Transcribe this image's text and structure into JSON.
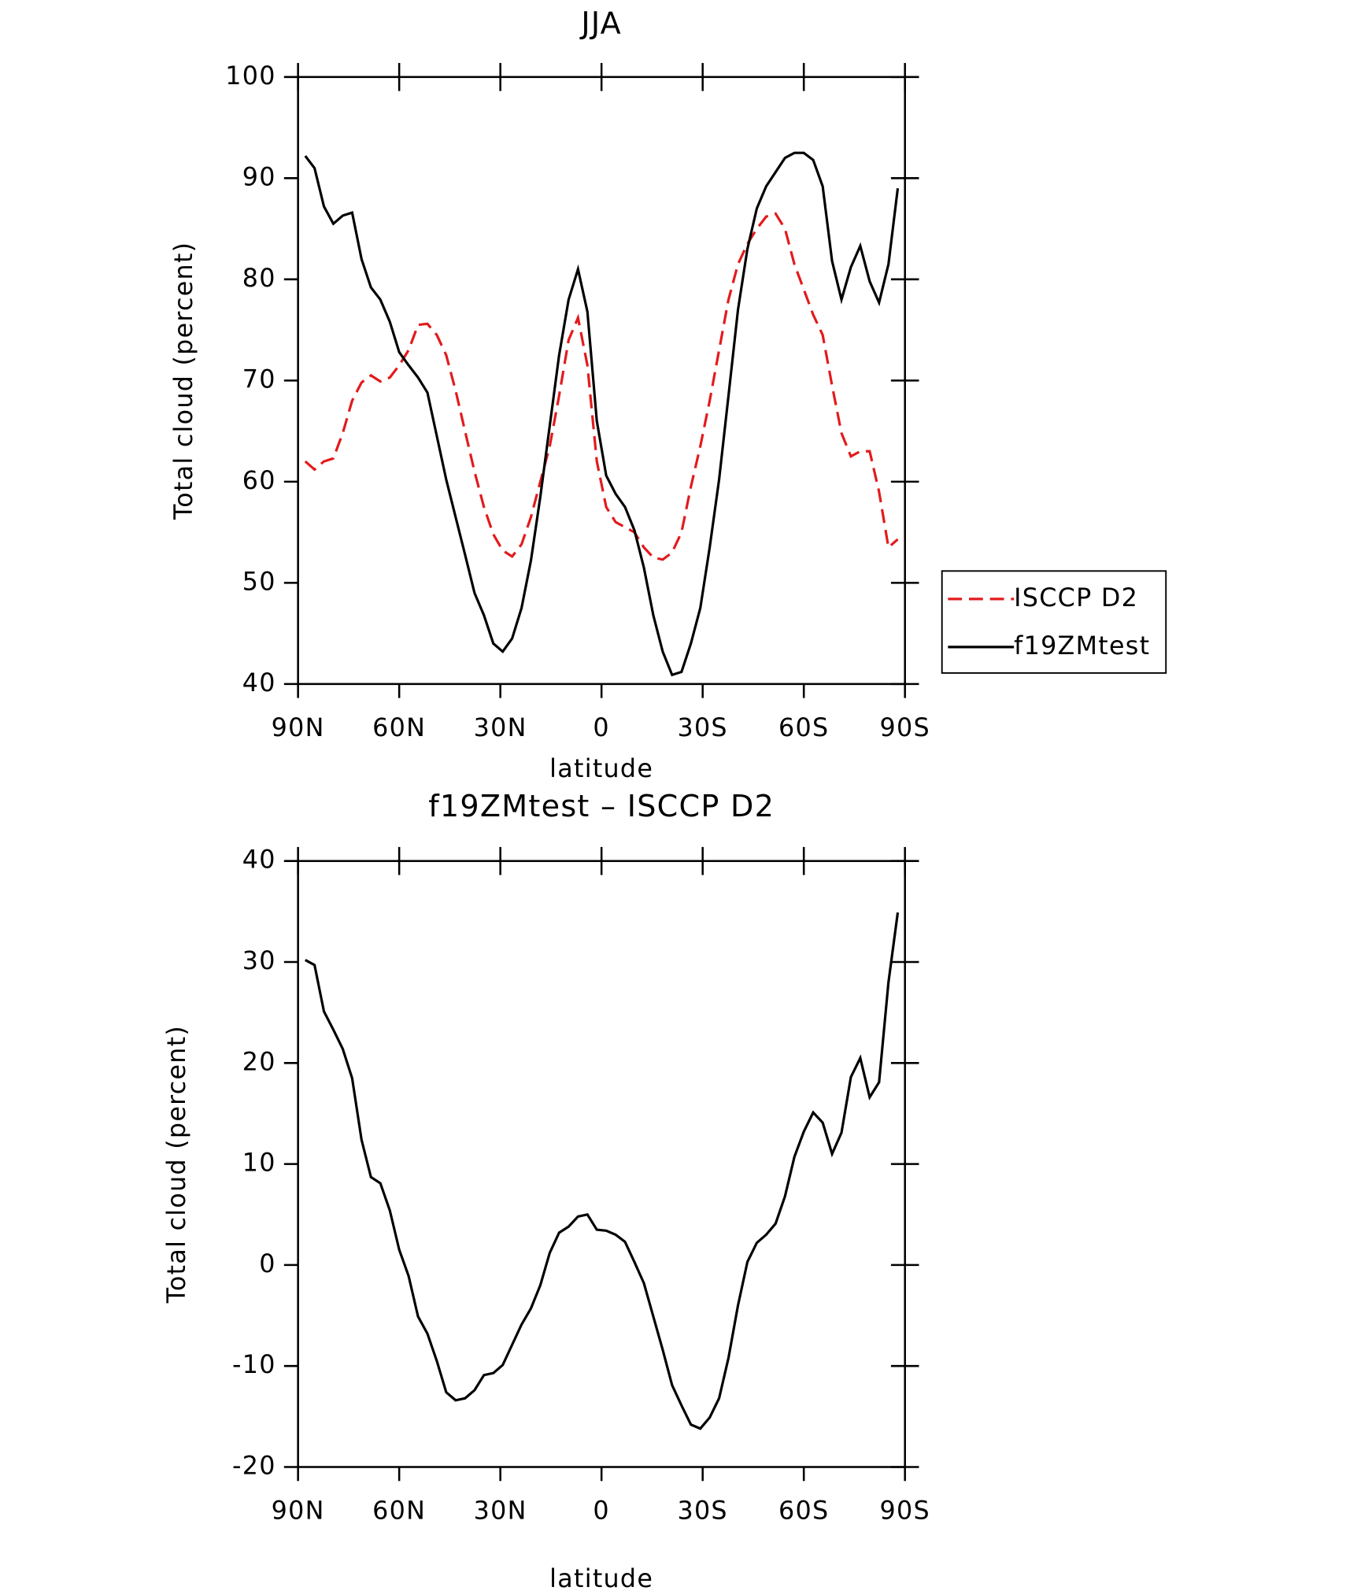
{
  "chart_data": [
    {
      "type": "line",
      "title": "JJA",
      "xlabel": "latitude",
      "ylabel": "Total cloud (percent)",
      "x": [
        87.86,
        85.1,
        82.31,
        79.53,
        76.74,
        73.95,
        71.16,
        68.37,
        65.58,
        62.79,
        60.0,
        57.21,
        54.42,
        51.63,
        48.84,
        46.05,
        43.26,
        40.47,
        37.67,
        34.88,
        32.09,
        29.3,
        26.51,
        23.72,
        20.93,
        18.14,
        15.35,
        12.56,
        9.77,
        6.98,
        4.19,
        1.4,
        -1.4,
        -4.19,
        -6.98,
        -9.77,
        -12.56,
        -15.35,
        -18.14,
        -20.93,
        -23.72,
        -26.51,
        -29.3,
        -32.09,
        -34.88,
        -37.67,
        -40.47,
        -43.26,
        -46.05,
        -48.84,
        -51.63,
        -54.42,
        -57.21,
        -60.0,
        -62.79,
        -65.58,
        -68.37,
        -71.16,
        -73.95,
        -76.74,
        -79.53,
        -82.31,
        -85.1,
        -87.86
      ],
      "series": [
        {
          "name": "ISCCP D2",
          "color": "#e31a1c",
          "dash": true,
          "values": [
            62,
            61.2,
            62,
            62.3,
            64.8,
            68,
            69.8,
            70.5,
            69.9,
            70.3,
            71.5,
            73,
            75.5,
            75.6,
            74.5,
            72.5,
            69,
            65,
            61,
            57.5,
            54.8,
            53.2,
            52.6,
            53.8,
            56.5,
            60,
            63.5,
            68.5,
            74,
            76.2,
            71.5,
            62,
            57.5,
            56,
            55.5,
            55,
            53.5,
            52.5,
            52.3,
            53,
            55,
            59.5,
            63.5,
            68,
            73,
            78,
            81.5,
            83.5,
            85,
            86.2,
            86.5,
            85,
            81.5,
            79,
            76.5,
            74.5,
            69.5,
            64.8,
            62.5,
            63,
            63,
            59,
            53.5,
            54.3
          ]
        },
        {
          "name": "f19ZMtest",
          "color": "#000000",
          "dash": false,
          "values": [
            92.2,
            91,
            87.2,
            85.5,
            86.3,
            86.6,
            82,
            79.2,
            78,
            75.8,
            72.8,
            71.5,
            70.3,
            68.8,
            64.5,
            60.2,
            56.5,
            52.8,
            49,
            46.8,
            44,
            43.2,
            44.5,
            47.5,
            52.2,
            58.5,
            65.5,
            72.5,
            78,
            81,
            76.8,
            66,
            60.6,
            58.8,
            57.5,
            55.2,
            51.5,
            46.8,
            43.2,
            40.9,
            41.2,
            44,
            47.5,
            53.5,
            60.2,
            68.5,
            77,
            83,
            87,
            89.2,
            90.6,
            92,
            92.5,
            92.5,
            91.8,
            89.2,
            81.8,
            78,
            81.2,
            83.3,
            79.8,
            77.7,
            81.5,
            89
          ]
        }
      ],
      "xlim": [
        90,
        -90
      ],
      "xticks": [
        {
          "value": 90,
          "label": "90N"
        },
        {
          "value": 60,
          "label": "60N"
        },
        {
          "value": 30,
          "label": "30N"
        },
        0,
        {
          "value": -30,
          "label": "30S"
        },
        {
          "value": -60,
          "label": "60S"
        },
        {
          "value": -90,
          "label": "90S"
        }
      ],
      "ylim": [
        40,
        100
      ],
      "yticks": [
        40,
        50,
        60,
        70,
        80,
        90,
        100
      ],
      "legend": "right"
    },
    {
      "type": "line",
      "title": "f19ZMtest – ISCCP D2",
      "xlabel": "latitude",
      "ylabel": "Total cloud (percent)",
      "x": [
        87.86,
        85.1,
        82.31,
        79.53,
        76.74,
        73.95,
        71.16,
        68.37,
        65.58,
        62.79,
        60.0,
        57.21,
        54.42,
        51.63,
        48.84,
        46.05,
        43.26,
        40.47,
        37.67,
        34.88,
        32.09,
        29.3,
        26.51,
        23.72,
        20.93,
        18.14,
        15.35,
        12.56,
        9.77,
        6.98,
        4.19,
        1.4,
        -1.4,
        -4.19,
        -6.98,
        -9.77,
        -12.56,
        -15.35,
        -18.14,
        -20.93,
        -23.72,
        -26.51,
        -29.3,
        -32.09,
        -34.88,
        -37.67,
        -40.47,
        -43.26,
        -46.05,
        -48.84,
        -51.63,
        -54.42,
        -57.21,
        -60.0,
        -62.79,
        -65.58,
        -68.37,
        -71.16,
        -73.95,
        -76.74,
        -79.53,
        -82.31,
        -85.1,
        -87.86
      ],
      "values": [
        30.2,
        29.7,
        25.1,
        23.3,
        21.4,
        18.5,
        12.4,
        8.7,
        8.1,
        5.4,
        1.5,
        -1.1,
        -5.1,
        -6.8,
        -9.5,
        -12.6,
        -13.4,
        -13.2,
        -12.4,
        -10.9,
        -10.7,
        -9.9,
        -7.9,
        -5.9,
        -4.3,
        -2,
        1.2,
        3.2,
        3.8,
        4.8,
        5,
        3.5,
        3.4,
        3,
        2.3,
        0.3,
        -1.8,
        -5.1,
        -8.4,
        -11.9,
        -13.9,
        -15.8,
        -16.2,
        -15.1,
        -13.2,
        -9.2,
        -4,
        0.3,
        2.2,
        3,
        4.1,
        6.8,
        10.7,
        13.2,
        15.1,
        14.1,
        11,
        13.1,
        18.6,
        20.5,
        16.6,
        18.1,
        28,
        34.9
      ],
      "color": "#000000",
      "xlim": [
        90,
        -90
      ],
      "xticks": [
        {
          "value": 90,
          "label": "90N"
        },
        {
          "value": 60,
          "label": "60N"
        },
        {
          "value": 30,
          "label": "30N"
        },
        0,
        {
          "value": -30,
          "label": "30S"
        },
        {
          "value": -60,
          "label": "60S"
        },
        {
          "value": -90,
          "label": "90S"
        }
      ],
      "ylim": [
        -20,
        40
      ],
      "yticks": [
        -20,
        -10,
        0,
        10,
        20,
        30,
        40
      ]
    }
  ]
}
